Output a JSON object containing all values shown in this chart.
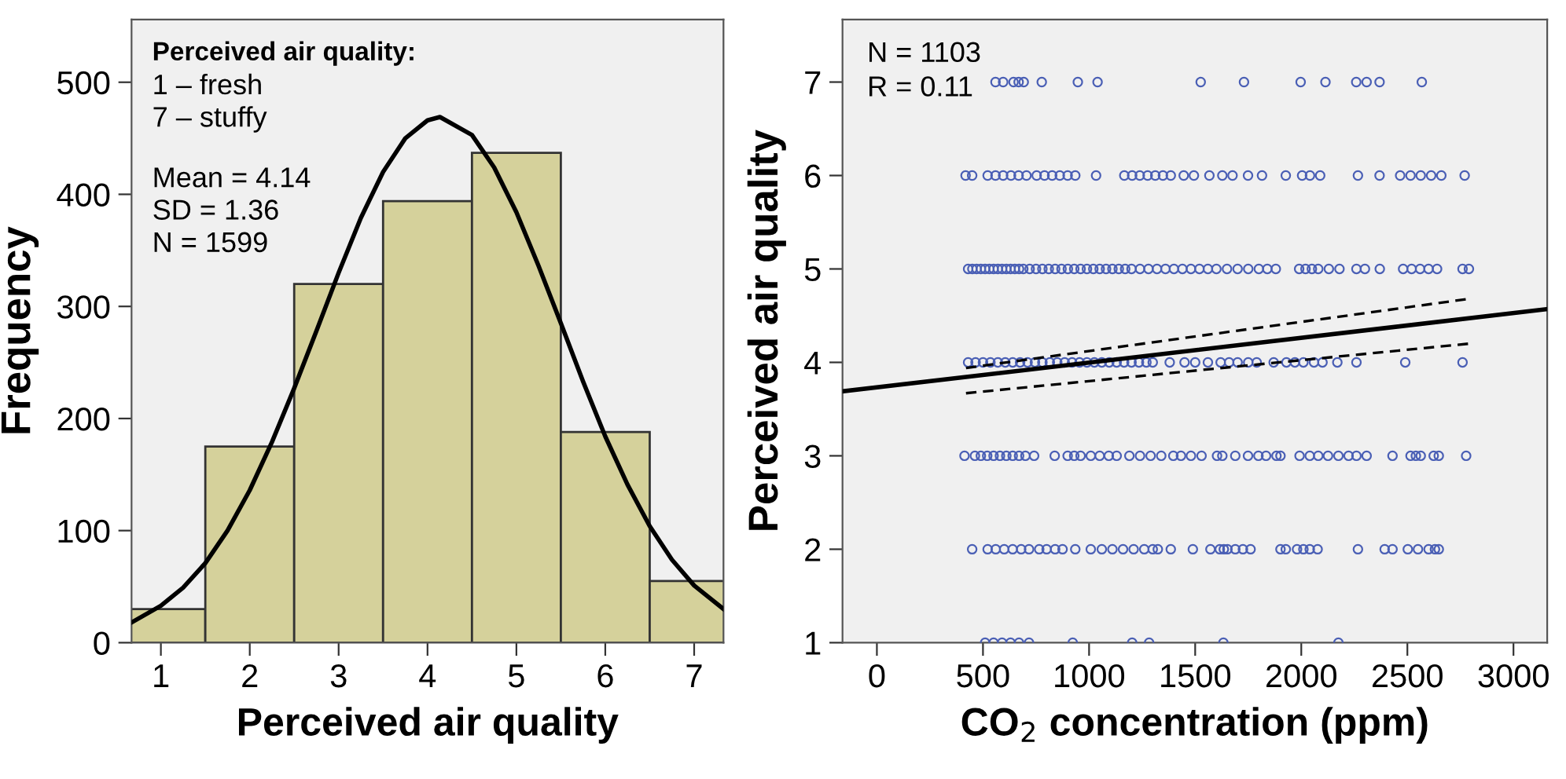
{
  "chart_data": [
    {
      "type": "histogram",
      "xlabel": "Perceived air quality",
      "ylabel": "Frequency",
      "bins": [
        0.5,
        1.5,
        2.5,
        3.5,
        4.5,
        5.5,
        6.5,
        7.5
      ],
      "values": [
        30,
        175,
        320,
        394,
        437,
        188,
        55
      ],
      "color": "#d5d19b",
      "series": [
        {
          "type": "line",
          "color": "#000000",
          "x": [
            0.67,
            1,
            1.25,
            1.5,
            1.75,
            2,
            2.25,
            2.5,
            2.75,
            3,
            3.25,
            3.5,
            3.75,
            4,
            4.14,
            4.5,
            4.75,
            5,
            5.25,
            5.5,
            5.75,
            6,
            6.25,
            6.5,
            6.75,
            7,
            7.33
          ],
          "values": [
            18,
            33,
            49,
            71,
            100,
            136,
            179,
            227,
            278,
            330,
            379,
            420,
            450,
            466,
            469,
            453,
            424,
            384,
            336,
            285,
            233,
            184,
            141,
            104,
            74,
            51,
            30
          ]
        }
      ],
      "xlim": [
        0.67,
        7.33
      ],
      "ylim": [
        0,
        556
      ],
      "xticks": [
        1,
        2,
        3,
        4,
        5,
        6,
        7
      ],
      "yticks": [
        0,
        100,
        200,
        300,
        400,
        500
      ],
      "grid": false,
      "legend": false,
      "annotations": [
        "Perceived air quality:",
        "1 – fresh",
        "7 – stuffy",
        "Mean = 4.14",
        "SD = 1.36",
        "N = 1599"
      ]
    },
    {
      "type": "scatter",
      "xlabel": "CO$_{2}$ concentration (ppm)",
      "ylabel": "Perceived air quality",
      "series": [
        {
          "type": "scatter",
          "color": "#4a5fb5",
          "marker": "circle",
          "x": [
            559,
            595,
            644,
            668,
            692,
            777,
            947,
            1040,
            1526,
            1730,
            1997,
            2114,
            2259,
            2308,
            2369,
            2568,
            418,
            449,
            522,
            559,
            595,
            632,
            668,
            705,
            753,
            790,
            826,
            862,
            899,
            935,
            1033,
            1166,
            1203,
            1239,
            1276,
            1312,
            1348,
            1385,
            1446,
            1494,
            1567,
            1628,
            1676,
            1749,
            1815,
            1927,
            2004,
            2041,
            2089,
            2267,
            2369,
            2466,
            2515,
            2563,
            2612,
            2660,
            2770,
            430,
            450,
            470,
            490,
            510,
            530,
            550,
            570,
            590,
            610,
            630,
            650,
            670,
            690,
            720,
            750,
            780,
            810,
            840,
            870,
            900,
            930,
            960,
            990,
            1020,
            1050,
            1080,
            1110,
            1140,
            1170,
            1200,
            1240,
            1280,
            1320,
            1360,
            1400,
            1440,
            1480,
            1520,
            1560,
            1600,
            1650,
            1700,
            1750,
            1800,
            1840,
            1880,
            1990,
            2020,
            2050,
            2080,
            2130,
            2180,
            2260,
            2300,
            2370,
            2480,
            2520,
            2560,
            2600,
            2640,
            2760,
            2790,
            430,
            465,
            500,
            535,
            570,
            605,
            640,
            675,
            710,
            745,
            780,
            815,
            850,
            885,
            920,
            955,
            990,
            1025,
            1060,
            1095,
            1130,
            1165,
            1200,
            1235,
            1270,
            1300,
            1380,
            1450,
            1500,
            1560,
            1620,
            1660,
            1700,
            1750,
            1790,
            1870,
            1930,
            1970,
            2010,
            2060,
            2100,
            2170,
            2260,
            2490,
            2760,
            413,
            462,
            490,
            520,
            550,
            580,
            610,
            640,
            670,
            700,
            741,
            838,
            899,
            930,
            960,
            1008,
            1050,
            1093,
            1130,
            1190,
            1240,
            1290,
            1340,
            1397,
            1433,
            1480,
            1530,
            1603,
            1628,
            1689,
            1749,
            1798,
            1834,
            1883,
            1902,
            1992,
            2040,
            2080,
            2126,
            2175,
            2223,
            2260,
            2308,
            2430,
            2515,
            2540,
            2563,
            2624,
            2648,
            2777,
            449,
            522,
            560,
            600,
            640,
            680,
            717,
            765,
            800,
            840,
            875,
            935,
            1008,
            1060,
            1110,
            1160,
            1210,
            1260,
            1300,
            1324,
            1385,
            1489,
            1572,
            1616,
            1635,
            1652,
            1689,
            1725,
            1761,
            1902,
            1927,
            1980,
            2010,
            2040,
            2077,
            2267,
            2393,
            2430,
            2502,
            2550,
            2600,
            2630,
            2648,
            510,
            550,
            590,
            630,
            670,
            717,
            923,
            1203,
            1283,
            1633,
            2175
          ],
          "values": [
            7,
            7,
            7,
            7,
            7,
            7,
            7,
            7,
            7,
            7,
            7,
            7,
            7,
            7,
            7,
            7,
            6,
            6,
            6,
            6,
            6,
            6,
            6,
            6,
            6,
            6,
            6,
            6,
            6,
            6,
            6,
            6,
            6,
            6,
            6,
            6,
            6,
            6,
            6,
            6,
            6,
            6,
            6,
            6,
            6,
            6,
            6,
            6,
            6,
            6,
            6,
            6,
            6,
            6,
            6,
            6,
            6,
            5,
            5,
            5,
            5,
            5,
            5,
            5,
            5,
            5,
            5,
            5,
            5,
            5,
            5,
            5,
            5,
            5,
            5,
            5,
            5,
            5,
            5,
            5,
            5,
            5,
            5,
            5,
            5,
            5,
            5,
            5,
            5,
            5,
            5,
            5,
            5,
            5,
            5,
            5,
            5,
            5,
            5,
            5,
            5,
            5,
            5,
            5,
            5,
            5,
            5,
            5,
            5,
            5,
            5,
            5,
            5,
            5,
            5,
            5,
            5,
            5,
            5,
            5,
            4,
            4,
            4,
            4,
            4,
            4,
            4,
            4,
            4,
            4,
            4,
            4,
            4,
            4,
            4,
            4,
            4,
            4,
            4,
            4,
            4,
            4,
            4,
            4,
            4,
            4,
            4,
            4,
            4,
            4,
            4,
            4,
            4,
            4,
            4,
            4,
            4,
            4,
            4,
            4,
            4,
            4,
            4,
            4,
            4,
            3,
            3,
            3,
            3,
            3,
            3,
            3,
            3,
            3,
            3,
            3,
            3,
            3,
            3,
            3,
            3,
            3,
            3,
            3,
            3,
            3,
            3,
            3,
            3,
            3,
            3,
            3,
            3,
            3,
            3,
            3,
            3,
            3,
            3,
            3,
            3,
            3,
            3,
            3,
            3,
            3,
            3,
            3,
            3,
            3,
            3,
            3,
            3,
            3,
            3,
            2,
            2,
            2,
            2,
            2,
            2,
            2,
            2,
            2,
            2,
            2,
            2,
            2,
            2,
            2,
            2,
            2,
            2,
            2,
            2,
            2,
            2,
            2,
            2,
            2,
            2,
            2,
            2,
            2,
            2,
            2,
            2,
            2,
            2,
            2,
            2,
            2,
            2,
            2,
            2,
            2,
            2,
            2,
            1,
            1,
            1,
            1,
            1,
            1,
            1,
            1,
            1,
            1,
            1
          ]
        },
        {
          "type": "line",
          "color": "#000000",
          "line_style": "solid",
          "x": [
            -162,
            3159
          ],
          "values": [
            3.69,
            4.57
          ]
        },
        {
          "type": "line",
          "color": "#000000",
          "line_style": "dashed",
          "x": [
            420,
            2790
          ],
          "values": [
            3.94,
            4.68
          ]
        },
        {
          "type": "line",
          "color": "#000000",
          "line_style": "dashed",
          "x": [
            420,
            2790
          ],
          "values": [
            3.67,
            4.2
          ]
        }
      ],
      "xlim": [
        -162,
        3159
      ],
      "ylim": [
        1,
        7.67
      ],
      "xticks": [
        0,
        500,
        1000,
        1500,
        2000,
        2500,
        3000
      ],
      "yticks": [
        1,
        2,
        3,
        4,
        5,
        6,
        7
      ],
      "grid": false,
      "legend": false,
      "annotations": [
        "N = 1103",
        "R = 0.11"
      ]
    }
  ]
}
